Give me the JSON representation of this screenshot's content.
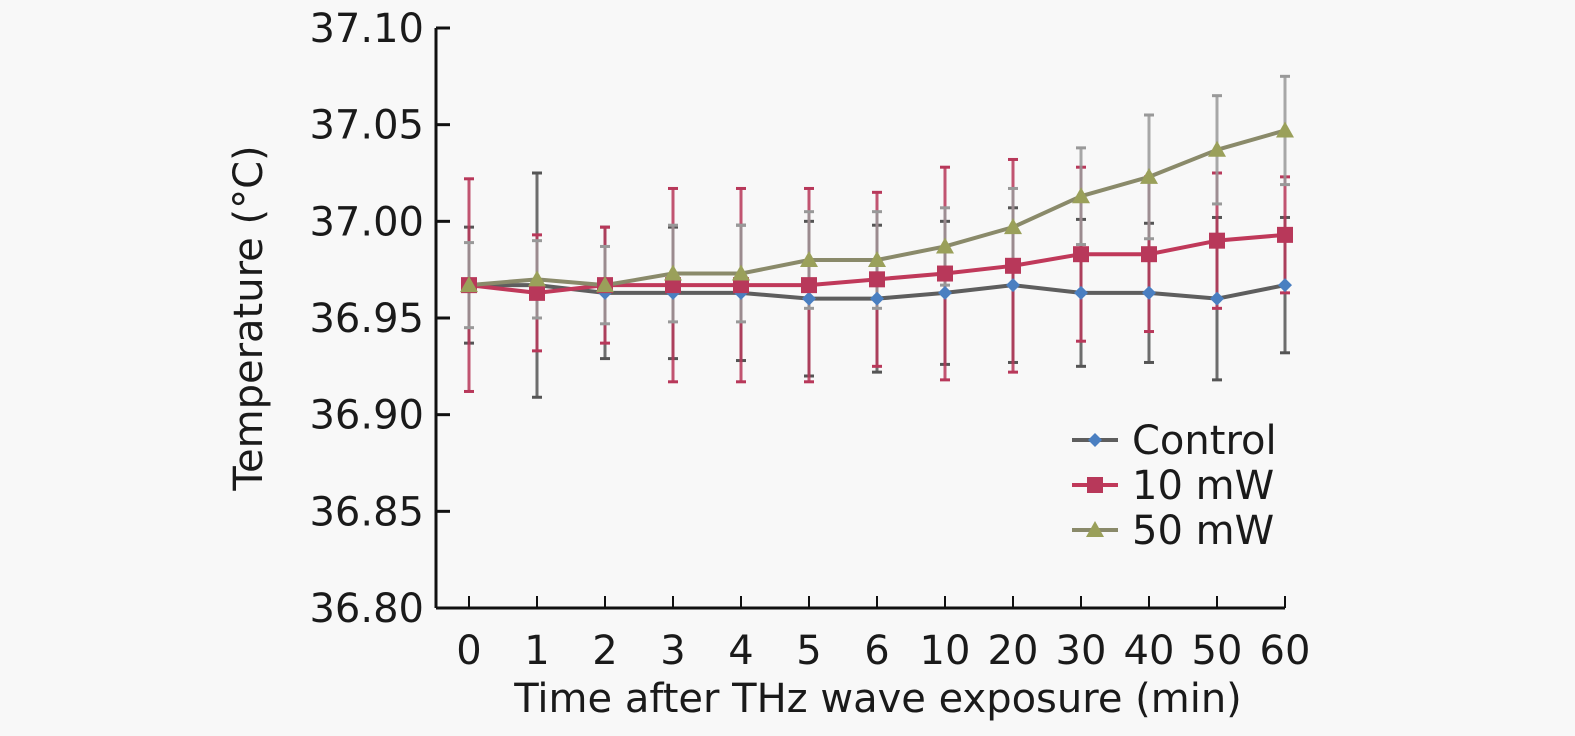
{
  "chart_data": {
    "type": "line",
    "title": "",
    "xlabel": "Time after THz wave exposure (min)",
    "ylabel": "Temperature (°C)",
    "categories": [
      "0",
      "1",
      "2",
      "3",
      "4",
      "5",
      "6",
      "10",
      "20",
      "30",
      "40",
      "50",
      "60"
    ],
    "ylim": [
      36.8,
      37.1
    ],
    "yticks": [
      "36.80",
      "36.85",
      "36.90",
      "36.95",
      "37.00",
      "37.05",
      "37.10"
    ],
    "ytick_values": [
      36.8,
      36.85,
      36.9,
      36.95,
      37.0,
      37.05,
      37.1
    ],
    "grid": false,
    "legend_position": "bottom-right",
    "series": [
      {
        "name": "Control",
        "marker": "diamond",
        "line_color": "#6b6b6b",
        "marker_color": "#4a7fc1",
        "values": [
          36.967,
          36.967,
          36.963,
          36.963,
          36.963,
          36.96,
          36.96,
          36.963,
          36.967,
          36.963,
          36.963,
          36.96,
          36.967
        ],
        "error": [
          0.03,
          0.058,
          0.034,
          0.034,
          0.035,
          0.04,
          0.038,
          0.037,
          0.04,
          0.038,
          0.036,
          0.042,
          0.035
        ]
      },
      {
        "name": "10 mW",
        "marker": "square",
        "line_color": "#c0395a",
        "marker_color": "#b8385a",
        "values": [
          36.967,
          36.963,
          36.967,
          36.967,
          36.967,
          36.967,
          36.97,
          36.973,
          36.977,
          36.983,
          36.983,
          36.99,
          36.993
        ],
        "error": [
          0.055,
          0.03,
          0.03,
          0.05,
          0.05,
          0.05,
          0.045,
          0.055,
          0.055,
          0.045,
          0.04,
          0.035,
          0.03
        ]
      },
      {
        "name": "50 mW",
        "marker": "triangle",
        "line_color": "#8a8a8a",
        "marker_color": "#9aa05a",
        "values": [
          36.967,
          36.97,
          36.967,
          36.973,
          36.973,
          36.98,
          36.98,
          36.987,
          36.997,
          37.013,
          37.023,
          37.037,
          37.047
        ],
        "error": [
          0.022,
          0.02,
          0.02,
          0.025,
          0.025,
          0.025,
          0.025,
          0.02,
          0.02,
          0.025,
          0.032,
          0.028,
          0.028
        ]
      }
    ]
  }
}
